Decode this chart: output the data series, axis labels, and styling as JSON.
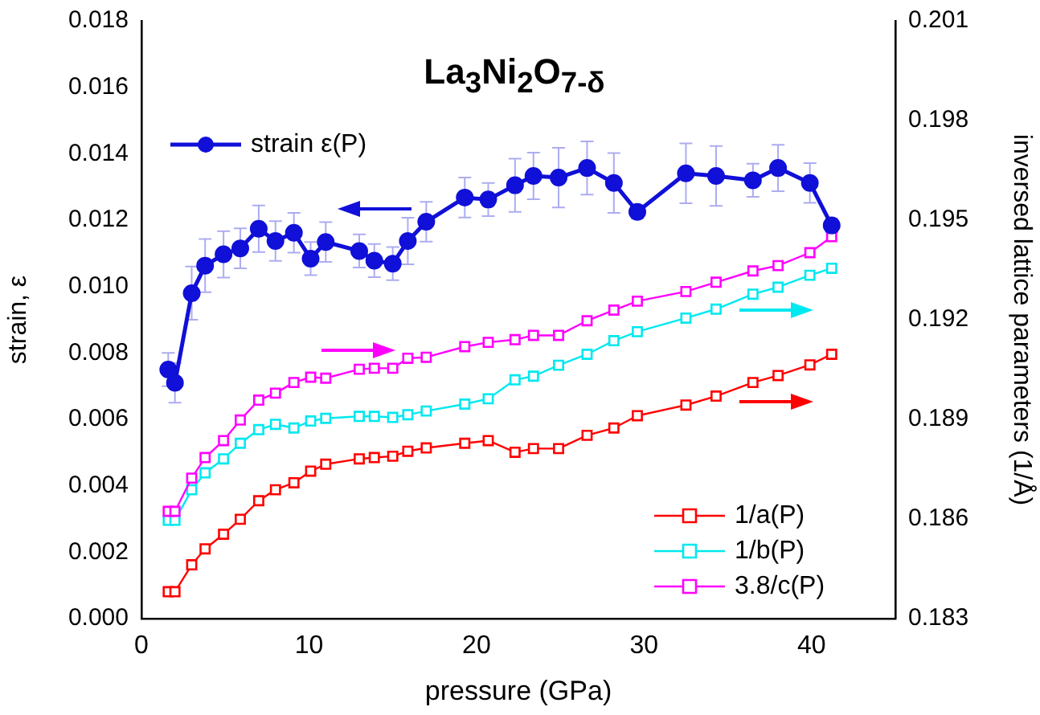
{
  "chart_data": {
    "type": "line",
    "title": "La$_{3}$Ni$_{2}$O$_{7-δ}$",
    "xlabel": "pressure (GPa)",
    "ylabel": "strain, ε",
    "y2label": "inversed lattice parameters (1/Å)",
    "x": [
      1.6,
      2.0,
      3.0,
      3.8,
      4.9,
      5.9,
      7.0,
      8.0,
      9.1,
      10.1,
      11.0,
      13.0,
      13.9,
      15.0,
      15.9,
      17.0,
      19.3,
      20.7,
      22.3,
      23.4,
      24.9,
      26.6,
      28.2,
      29.6,
      32.5,
      34.3,
      36.5,
      38.0,
      39.9,
      41.2
    ],
    "xlim": [
      0,
      45
    ],
    "xticks": [
      0,
      10,
      20,
      30,
      40
    ],
    "ylim": [
      0,
      0.018
    ],
    "yticks": [
      {
        "value": 0,
        "label": "0.000"
      },
      0.002,
      0.004,
      0.006,
      0.008,
      {
        "value": 0.01,
        "label": "0.010"
      },
      0.012,
      0.014,
      0.016,
      0.018
    ],
    "y2lim": [
      0.183,
      0.201
    ],
    "y2ticks": [
      0.183,
      0.186,
      0.189,
      0.192,
      0.195,
      0.198,
      0.201
    ],
    "legend": "bottom right",
    "grid": false,
    "series": [
      {
        "name": "strain ε(P)",
        "color": "#1010d8",
        "marker": "circle",
        "values": [
          0.0075,
          0.0071,
          0.0098,
          0.01063,
          0.01097,
          0.01115,
          0.01174,
          0.01137,
          0.01162,
          0.01084,
          0.01134,
          0.01107,
          0.01078,
          0.01069,
          0.01137,
          0.01195,
          0.01268,
          0.01262,
          0.01305,
          0.01333,
          0.01328,
          0.01357,
          0.01312,
          0.01225,
          0.01341,
          0.01333,
          0.0132,
          0.01357,
          0.01312,
          0.01184
        ],
        "errors": [
          0.0005,
          0.0006,
          0.0008,
          0.0008,
          0.0007,
          0.0006,
          0.0007,
          0.0006,
          0.0006,
          0.0005,
          0.0006,
          0.0005,
          0.0005,
          0.0005,
          0.0007,
          0.0006,
          0.0006,
          0.0005,
          0.0008,
          0.0007,
          0.0009,
          0.0008,
          0.0009,
          0.0002,
          0.0009,
          0.0009,
          0.0005,
          0.0007,
          0.0006,
          0.0002
        ]
      },
      {
        "name": "1/a(P)",
        "color": "#ff0000",
        "marker": "square",
        "axis": "y2",
        "values": [
          0.18381,
          0.18381,
          0.18462,
          0.1851,
          0.18554,
          0.18599,
          0.18655,
          0.18688,
          0.18709,
          0.18744,
          0.18765,
          0.18781,
          0.18785,
          0.18789,
          0.18804,
          0.18814,
          0.18828,
          0.18836,
          0.18801,
          0.18812,
          0.18812,
          0.18852,
          0.18874,
          0.18911,
          0.18943,
          0.1897,
          0.19011,
          0.19032,
          0.19064,
          0.19096
        ]
      },
      {
        "name": "1/b(P)",
        "color": "#00e8f0",
        "marker": "square",
        "axis": "y2",
        "values": [
          0.18596,
          0.18596,
          0.18688,
          0.18739,
          0.18781,
          0.18828,
          0.18869,
          0.18885,
          0.18874,
          0.18895,
          0.18903,
          0.18909,
          0.18909,
          0.18906,
          0.18914,
          0.18925,
          0.18946,
          0.18962,
          0.19019,
          0.1903,
          0.19063,
          0.19096,
          0.19137,
          0.19164,
          0.19205,
          0.19232,
          0.19277,
          0.19298,
          0.19334,
          0.19355
        ]
      },
      {
        "name": "3.8/c(P)",
        "color": "#ff00ff",
        "marker": "square",
        "axis": "y2",
        "values": [
          0.18623,
          0.18623,
          0.18723,
          0.18785,
          0.18836,
          0.18898,
          0.18958,
          0.18979,
          0.19011,
          0.19027,
          0.19024,
          0.19051,
          0.19054,
          0.19054,
          0.19084,
          0.19087,
          0.19119,
          0.19132,
          0.1914,
          0.19153,
          0.19153,
          0.19197,
          0.19229,
          0.19256,
          0.19285,
          0.19313,
          0.19347,
          0.19363,
          0.19402,
          0.1945
        ]
      }
    ]
  }
}
